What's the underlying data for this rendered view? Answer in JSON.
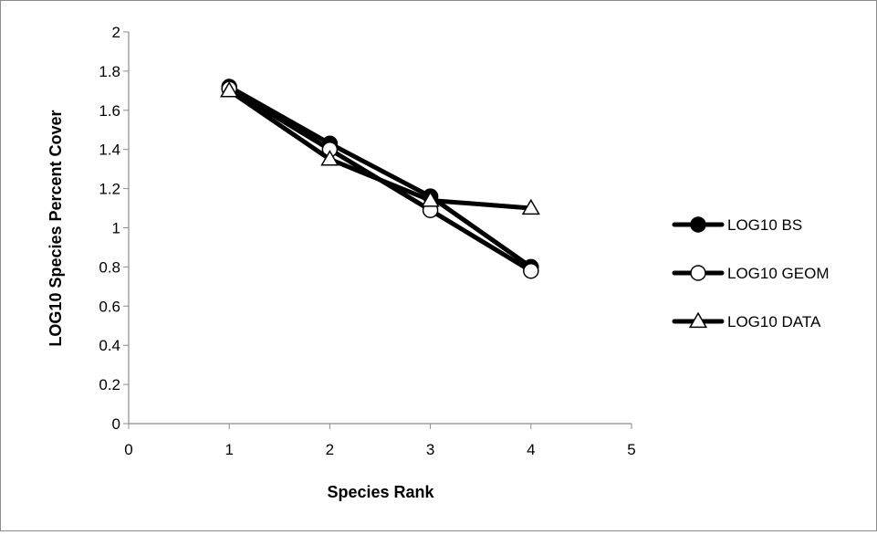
{
  "chart_data": {
    "type": "line",
    "title": "",
    "xlabel": "Species Rank",
    "ylabel": "LOG10 Species Percent Cover",
    "xlim": [
      0,
      5
    ],
    "ylim": [
      0,
      2
    ],
    "x_ticks": [
      "0",
      "1",
      "2",
      "3",
      "4",
      "5"
    ],
    "y_ticks": [
      "0",
      "0.2",
      "0.4",
      "0.6",
      "0.8",
      "1",
      "1.2",
      "1.4",
      "1.6",
      "1.8",
      "2"
    ],
    "grid": false,
    "legend_position": "right",
    "series": [
      {
        "name": "LOG10 BS",
        "marker": "filled-circle",
        "color": "#000000",
        "x": [
          1,
          2,
          3,
          4
        ],
        "y": [
          1.72,
          1.43,
          1.16,
          0.8
        ]
      },
      {
        "name": "LOG10 GEOM",
        "marker": "open-circle",
        "color": "#000000",
        "x": [
          1,
          2,
          3,
          4
        ],
        "y": [
          1.71,
          1.4,
          1.09,
          0.78
        ]
      },
      {
        "name": "LOG10 DATA",
        "marker": "open-triangle",
        "color": "#000000",
        "x": [
          1,
          2,
          3,
          4
        ],
        "y": [
          1.7,
          1.35,
          1.14,
          1.1
        ]
      }
    ]
  }
}
